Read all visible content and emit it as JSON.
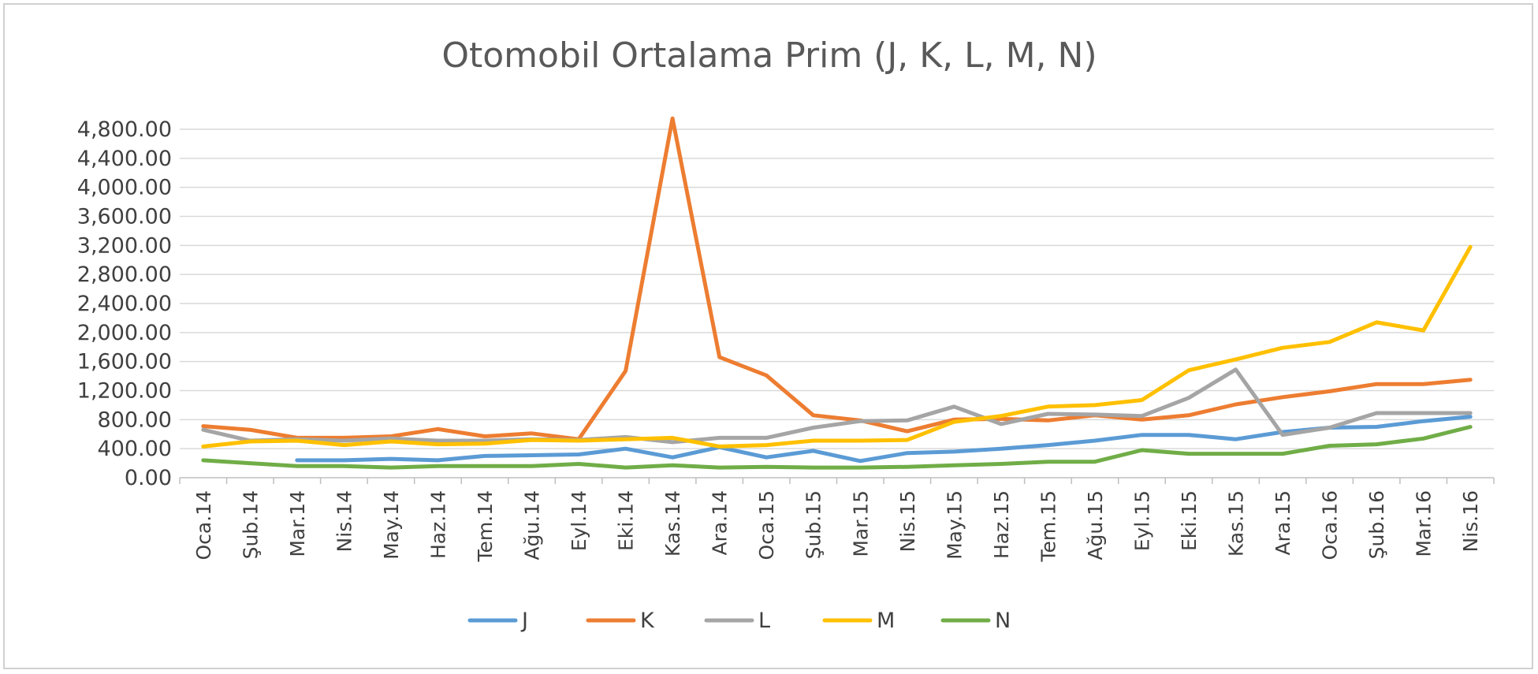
{
  "chart_data": {
    "type": "line",
    "title": "Otomobil Ortalama Prim (J, K, L, M, N)",
    "xlabel": "",
    "ylabel": "",
    "ylim": [
      0,
      4800
    ],
    "yticks": [
      0,
      400,
      800,
      1200,
      1600,
      2000,
      2400,
      2800,
      3200,
      3600,
      4000,
      4400,
      4800
    ],
    "ytick_labels": [
      "0.00",
      "400.00",
      "800.00",
      "1,200.00",
      "1,600.00",
      "2,000.00",
      "2,400.00",
      "2,800.00",
      "3,200.00",
      "3,600.00",
      "4,000.00",
      "4,400.00",
      "4,800.00"
    ],
    "grid": true,
    "legend": "bottom",
    "categories": [
      "Oca.14",
      "Şub.14",
      "Mar.14",
      "Nis.14",
      "May.14",
      "Haz.14",
      "Tem.14",
      "Ağu.14",
      "Eyl.14",
      "Eki.14",
      "Kas.14",
      "Ara.14",
      "Oca.15",
      "Şub.15",
      "Mar.15",
      "Nis.15",
      "May.15",
      "Haz.15",
      "Tem.15",
      "Ağu.15",
      "Eyl.15",
      "Eki.15",
      "Kas.15",
      "Ara.15",
      "Oca.16",
      "Şub.16",
      "Mar.16",
      "Nis.16"
    ],
    "series": [
      {
        "name": "J",
        "color": "#5b9bd5",
        "values": [
          null,
          null,
          240,
          240,
          260,
          240,
          300,
          310,
          320,
          400,
          280,
          420,
          280,
          370,
          230,
          340,
          360,
          400,
          450,
          510,
          590,
          590,
          530,
          630,
          690,
          700,
          780,
          840
        ]
      },
      {
        "name": "K",
        "color": "#ed7d31",
        "values": [
          710,
          660,
          550,
          550,
          570,
          670,
          570,
          610,
          530,
          1470,
          4950,
          1660,
          1410,
          860,
          790,
          640,
          800,
          810,
          790,
          860,
          800,
          860,
          1010,
          1110,
          1190,
          1290,
          1290,
          1350
        ]
      },
      {
        "name": "L",
        "color": "#a5a5a5",
        "values": [
          660,
          510,
          530,
          510,
          540,
          510,
          510,
          530,
          520,
          560,
          490,
          550,
          550,
          690,
          780,
          790,
          980,
          740,
          880,
          870,
          850,
          1100,
          1490,
          590,
          690,
          890,
          890,
          890
        ]
      },
      {
        "name": "M",
        "color": "#ffc000",
        "values": [
          430,
          500,
          510,
          450,
          500,
          460,
          470,
          520,
          510,
          530,
          550,
          430,
          450,
          510,
          510,
          520,
          770,
          850,
          980,
          1000,
          1070,
          1480,
          1630,
          1790,
          1870,
          2140,
          2030,
          3180
        ]
      },
      {
        "name": "N",
        "color": "#70ad47",
        "values": [
          240,
          200,
          160,
          160,
          140,
          160,
          160,
          160,
          190,
          140,
          170,
          140,
          150,
          140,
          140,
          150,
          170,
          190,
          220,
          220,
          380,
          330,
          330,
          330,
          440,
          460,
          540,
          700
        ]
      }
    ]
  }
}
